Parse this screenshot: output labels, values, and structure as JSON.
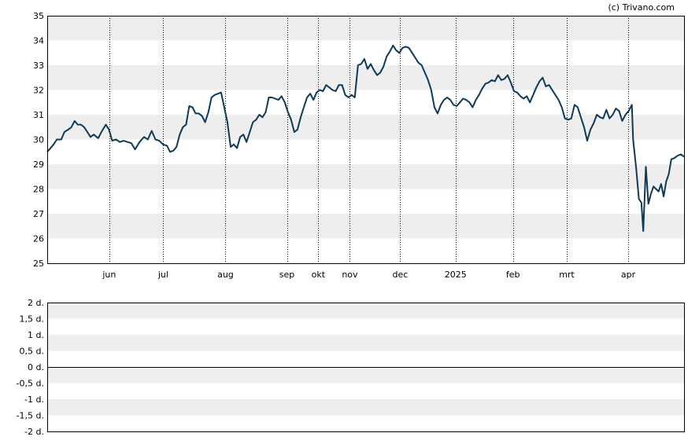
{
  "credit": "(c) Trivano.com",
  "colors": {
    "line": "#0d3a56",
    "band": "#eeeeee",
    "axis": "#000000",
    "gridline": "#000000"
  },
  "chart_data": [
    {
      "type": "line",
      "ylim": [
        25,
        35
      ],
      "yticks": [
        "25",
        "26",
        "27",
        "28",
        "29",
        "30",
        "31",
        "32",
        "33",
        "34",
        "35"
      ],
      "x_labels": [
        {
          "label": "jun",
          "t": 0.0975
        },
        {
          "label": "jul",
          "t": 0.1822
        },
        {
          "label": "aug",
          "t": 0.2799
        },
        {
          "label": "sep",
          "t": 0.3764
        },
        {
          "label": "okt",
          "t": 0.4257
        },
        {
          "label": "nov",
          "t": 0.4752
        },
        {
          "label": "dec",
          "t": 0.5543
        },
        {
          "label": "2025",
          "t": 0.6412
        },
        {
          "label": "feb",
          "t": 0.7314
        },
        {
          "label": "mrt",
          "t": 0.8158
        },
        {
          "label": "apr",
          "t": 0.9122
        }
      ],
      "grid": "dotted-vertical",
      "series": [
        {
          "values": [
            [
              0.0,
              29.5
            ],
            [
              0.01,
              29.8
            ],
            [
              0.015,
              30.0
            ],
            [
              0.022,
              30.0
            ],
            [
              0.027,
              30.3
            ],
            [
              0.033,
              30.4
            ],
            [
              0.038,
              30.5
            ],
            [
              0.043,
              30.75
            ],
            [
              0.048,
              30.6
            ],
            [
              0.053,
              30.6
            ],
            [
              0.058,
              30.5
            ],
            [
              0.063,
              30.3
            ],
            [
              0.068,
              30.1
            ],
            [
              0.073,
              30.2
            ],
            [
              0.08,
              30.05
            ],
            [
              0.085,
              30.3
            ],
            [
              0.092,
              30.6
            ],
            [
              0.097,
              30.4
            ],
            [
              0.102,
              29.95
            ],
            [
              0.108,
              30.0
            ],
            [
              0.114,
              29.9
            ],
            [
              0.12,
              29.95
            ],
            [
              0.126,
              29.9
            ],
            [
              0.132,
              29.85
            ],
            [
              0.138,
              29.6
            ],
            [
              0.145,
              29.9
            ],
            [
              0.152,
              30.1
            ],
            [
              0.158,
              30.0
            ],
            [
              0.164,
              30.35
            ],
            [
              0.17,
              30.0
            ],
            [
              0.176,
              29.95
            ],
            [
              0.182,
              29.8
            ],
            [
              0.188,
              29.75
            ],
            [
              0.193,
              29.5
            ],
            [
              0.198,
              29.55
            ],
            [
              0.203,
              29.7
            ],
            [
              0.208,
              30.2
            ],
            [
              0.213,
              30.5
            ],
            [
              0.218,
              30.6
            ],
            [
              0.223,
              31.35
            ],
            [
              0.228,
              31.3
            ],
            [
              0.233,
              31.05
            ],
            [
              0.238,
              31.05
            ],
            [
              0.243,
              30.95
            ],
            [
              0.248,
              30.7
            ],
            [
              0.253,
              31.1
            ],
            [
              0.258,
              31.7
            ],
            [
              0.263,
              31.8
            ],
            [
              0.268,
              31.85
            ],
            [
              0.273,
              31.9
            ],
            [
              0.278,
              31.3
            ],
            [
              0.283,
              30.7
            ],
            [
              0.288,
              29.7
            ],
            [
              0.293,
              29.8
            ],
            [
              0.298,
              29.65
            ],
            [
              0.303,
              30.1
            ],
            [
              0.308,
              30.2
            ],
            [
              0.313,
              29.9
            ],
            [
              0.318,
              30.3
            ],
            [
              0.323,
              30.7
            ],
            [
              0.328,
              30.8
            ],
            [
              0.333,
              31.0
            ],
            [
              0.338,
              30.9
            ],
            [
              0.343,
              31.1
            ],
            [
              0.348,
              31.7
            ],
            [
              0.353,
              31.7
            ],
            [
              0.358,
              31.65
            ],
            [
              0.363,
              31.6
            ],
            [
              0.368,
              31.75
            ],
            [
              0.373,
              31.5
            ],
            [
              0.378,
              31.1
            ],
            [
              0.383,
              30.8
            ],
            [
              0.388,
              30.3
            ],
            [
              0.393,
              30.4
            ],
            [
              0.398,
              30.9
            ],
            [
              0.403,
              31.3
            ],
            [
              0.408,
              31.7
            ],
            [
              0.413,
              31.85
            ],
            [
              0.418,
              31.6
            ],
            [
              0.423,
              31.9
            ],
            [
              0.428,
              32.0
            ],
            [
              0.433,
              31.95
            ],
            [
              0.438,
              32.2
            ],
            [
              0.443,
              32.1
            ],
            [
              0.448,
              32.0
            ],
            [
              0.453,
              31.95
            ],
            [
              0.458,
              32.2
            ],
            [
              0.463,
              32.2
            ],
            [
              0.468,
              31.8
            ],
            [
              0.473,
              31.7
            ],
            [
              0.478,
              31.8
            ],
            [
              0.483,
              31.7
            ],
            [
              0.488,
              33.0
            ],
            [
              0.493,
              33.05
            ],
            [
              0.498,
              33.25
            ],
            [
              0.503,
              32.85
            ],
            [
              0.508,
              33.05
            ],
            [
              0.513,
              32.8
            ],
            [
              0.518,
              32.6
            ],
            [
              0.523,
              32.7
            ],
            [
              0.528,
              32.95
            ],
            [
              0.533,
              33.35
            ],
            [
              0.538,
              33.55
            ],
            [
              0.543,
              33.8
            ],
            [
              0.548,
              33.6
            ],
            [
              0.553,
              33.5
            ],
            [
              0.558,
              33.7
            ],
            [
              0.563,
              33.75
            ],
            [
              0.568,
              33.7
            ],
            [
              0.573,
              33.5
            ],
            [
              0.578,
              33.3
            ],
            [
              0.583,
              33.1
            ],
            [
              0.588,
              33.0
            ],
            [
              0.593,
              32.7
            ],
            [
              0.598,
              32.4
            ],
            [
              0.603,
              32.0
            ],
            [
              0.608,
              31.3
            ],
            [
              0.613,
              31.05
            ],
            [
              0.618,
              31.4
            ],
            [
              0.623,
              31.6
            ],
            [
              0.628,
              31.7
            ],
            [
              0.633,
              31.6
            ],
            [
              0.638,
              31.4
            ],
            [
              0.643,
              31.35
            ],
            [
              0.648,
              31.5
            ],
            [
              0.653,
              31.65
            ],
            [
              0.658,
              31.6
            ],
            [
              0.663,
              31.5
            ],
            [
              0.668,
              31.3
            ],
            [
              0.673,
              31.6
            ],
            [
              0.678,
              31.8
            ],
            [
              0.683,
              32.05
            ],
            [
              0.688,
              32.25
            ],
            [
              0.693,
              32.3
            ],
            [
              0.698,
              32.4
            ],
            [
              0.703,
              32.35
            ],
            [
              0.708,
              32.6
            ],
            [
              0.713,
              32.4
            ],
            [
              0.718,
              32.45
            ],
            [
              0.723,
              32.6
            ],
            [
              0.728,
              32.3
            ],
            [
              0.733,
              31.95
            ],
            [
              0.738,
              31.9
            ],
            [
              0.743,
              31.75
            ],
            [
              0.748,
              31.65
            ],
            [
              0.753,
              31.75
            ],
            [
              0.758,
              31.5
            ],
            [
              0.763,
              31.8
            ],
            [
              0.768,
              32.1
            ],
            [
              0.773,
              32.35
            ],
            [
              0.778,
              32.5
            ],
            [
              0.783,
              32.15
            ],
            [
              0.788,
              32.2
            ],
            [
              0.793,
              32.0
            ],
            [
              0.798,
              31.8
            ],
            [
              0.803,
              31.6
            ],
            [
              0.808,
              31.3
            ],
            [
              0.813,
              30.85
            ],
            [
              0.818,
              30.8
            ],
            [
              0.823,
              30.85
            ],
            [
              0.828,
              31.4
            ],
            [
              0.833,
              31.3
            ],
            [
              0.838,
              30.9
            ],
            [
              0.843,
              30.5
            ],
            [
              0.848,
              29.95
            ],
            [
              0.853,
              30.4
            ],
            [
              0.858,
              30.65
            ],
            [
              0.863,
              31.0
            ],
            [
              0.868,
              30.9
            ],
            [
              0.873,
              30.85
            ],
            [
              0.878,
              31.2
            ],
            [
              0.883,
              30.85
            ],
            [
              0.888,
              31.0
            ],
            [
              0.893,
              31.25
            ],
            [
              0.898,
              31.15
            ],
            [
              0.903,
              30.75
            ],
            [
              0.908,
              31.0
            ],
            [
              0.913,
              31.15
            ],
            [
              0.918,
              31.4
            ],
            [
              0.92,
              30.0
            ],
            [
              0.925,
              28.8
            ],
            [
              0.929,
              27.6
            ],
            [
              0.933,
              27.45
            ],
            [
              0.936,
              26.3
            ],
            [
              0.94,
              28.9
            ],
            [
              0.944,
              27.4
            ],
            [
              0.948,
              27.8
            ],
            [
              0.952,
              28.1
            ],
            [
              0.956,
              28.0
            ],
            [
              0.96,
              27.9
            ],
            [
              0.964,
              28.2
            ],
            [
              0.968,
              27.7
            ],
            [
              0.972,
              28.3
            ],
            [
              0.976,
              28.6
            ],
            [
              0.98,
              29.2
            ],
            [
              0.985,
              29.25
            ],
            [
              0.99,
              29.35
            ],
            [
              0.995,
              29.4
            ],
            [
              1.0,
              29.3
            ]
          ]
        }
      ]
    },
    {
      "type": "line",
      "ylim": [
        -2,
        2
      ],
      "yticks": [
        "-2 d.",
        "-1,5 d.",
        "-1 d.",
        "-0,5 d.",
        "0 d.",
        "0,5 d.",
        "1 d.",
        "1,5 d.",
        "2 d."
      ],
      "series": []
    }
  ]
}
